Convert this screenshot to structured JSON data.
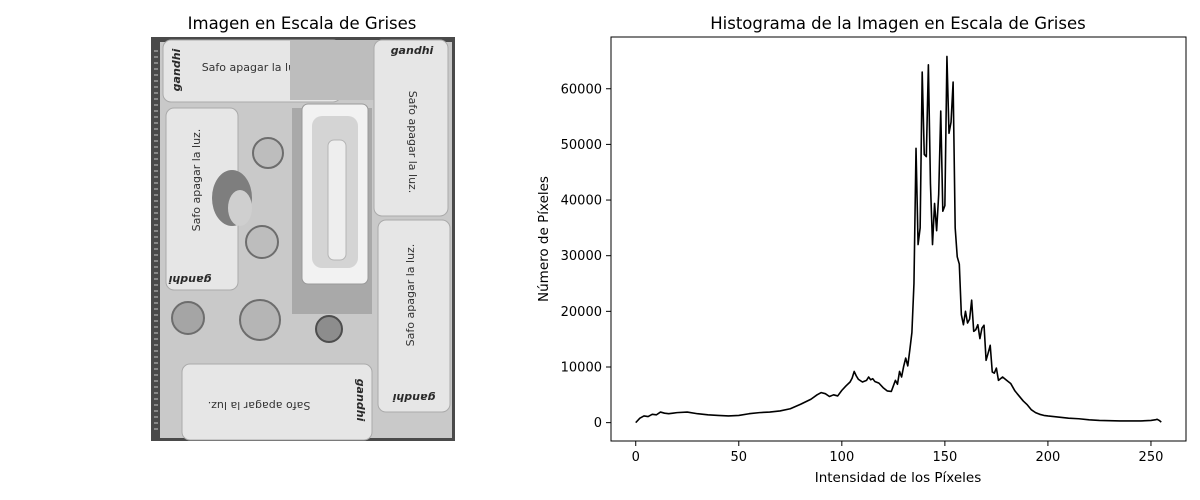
{
  "figure": {
    "left_panel": {
      "title": "Imagen en Escala de Grises",
      "image_text": {
        "card_label": "Safo apagar la luz.",
        "brand": "gandhi"
      }
    }
  },
  "chart_data": {
    "type": "line",
    "title": "Histograma de la Imagen en Escala de Grises",
    "xlabel": "Intensidad de los Píxeles",
    "ylabel": "Número de Píxeles",
    "xlim": [
      -12,
      267
    ],
    "ylim": [
      -3300,
      69300
    ],
    "xticks": [
      0,
      50,
      100,
      150,
      200,
      250
    ],
    "yticks": [
      0,
      10000,
      20000,
      30000,
      40000,
      50000,
      60000
    ],
    "grid": false,
    "series": [
      {
        "color": "#000000",
        "x": [
          0,
          2,
          4,
          6,
          8,
          10,
          12,
          14,
          16,
          18,
          20,
          25,
          30,
          35,
          40,
          45,
          50,
          55,
          60,
          65,
          70,
          75,
          80,
          85,
          88,
          90,
          92,
          94,
          96,
          98,
          100,
          102,
          104,
          105,
          106,
          107,
          108,
          110,
          112,
          113,
          114,
          115,
          116,
          118,
          120,
          122,
          124,
          125,
          126,
          127,
          128,
          129,
          130,
          131,
          132,
          133,
          134,
          135,
          136,
          137,
          138,
          139,
          140,
          141,
          142,
          143,
          144,
          145,
          146,
          147,
          148,
          149,
          150,
          151,
          152,
          153,
          154,
          155,
          156,
          157,
          158,
          159,
          160,
          161,
          162,
          163,
          164,
          165,
          166,
          167,
          168,
          169,
          170,
          171,
          172,
          173,
          174,
          175,
          176,
          178,
          180,
          182,
          184,
          186,
          188,
          190,
          192,
          194,
          196,
          198,
          200,
          205,
          210,
          215,
          220,
          225,
          230,
          235,
          240,
          245,
          250,
          252,
          253,
          254,
          255
        ],
        "y": [
          0,
          800,
          1200,
          1100,
          1500,
          1400,
          1900,
          1700,
          1600,
          1700,
          1800,
          1900,
          1600,
          1400,
          1300,
          1200,
          1300,
          1600,
          1800,
          1900,
          2100,
          2500,
          3300,
          4200,
          5000,
          5400,
          5200,
          4700,
          5000,
          4800,
          5800,
          6600,
          7300,
          8000,
          9200,
          8400,
          7800,
          7300,
          7600,
          8200,
          7700,
          7900,
          7400,
          7100,
          6300,
          5700,
          5600,
          6600,
          7600,
          6900,
          9200,
          8200,
          10100,
          11600,
          10200,
          13100,
          16200,
          25000,
          49300,
          32000,
          35000,
          63000,
          48200,
          47800,
          64300,
          43000,
          32000,
          39400,
          34500,
          41000,
          56000,
          38000,
          39000,
          65800,
          52000,
          54000,
          61200,
          35000,
          29800,
          28500,
          19400,
          17600,
          20000,
          17900,
          18600,
          22000,
          16400,
          16700,
          17600,
          15100,
          17000,
          17500,
          11200,
          12500,
          13900,
          9100,
          8900,
          9800,
          7600,
          8200,
          7600,
          7000,
          5700,
          4800,
          3900,
          3200,
          2300,
          1800,
          1500,
          1300,
          1200,
          1000,
          800,
          700,
          500,
          400,
          350,
          300,
          300,
          300,
          400,
          500,
          600,
          400,
          100
        ]
      }
    ]
  }
}
